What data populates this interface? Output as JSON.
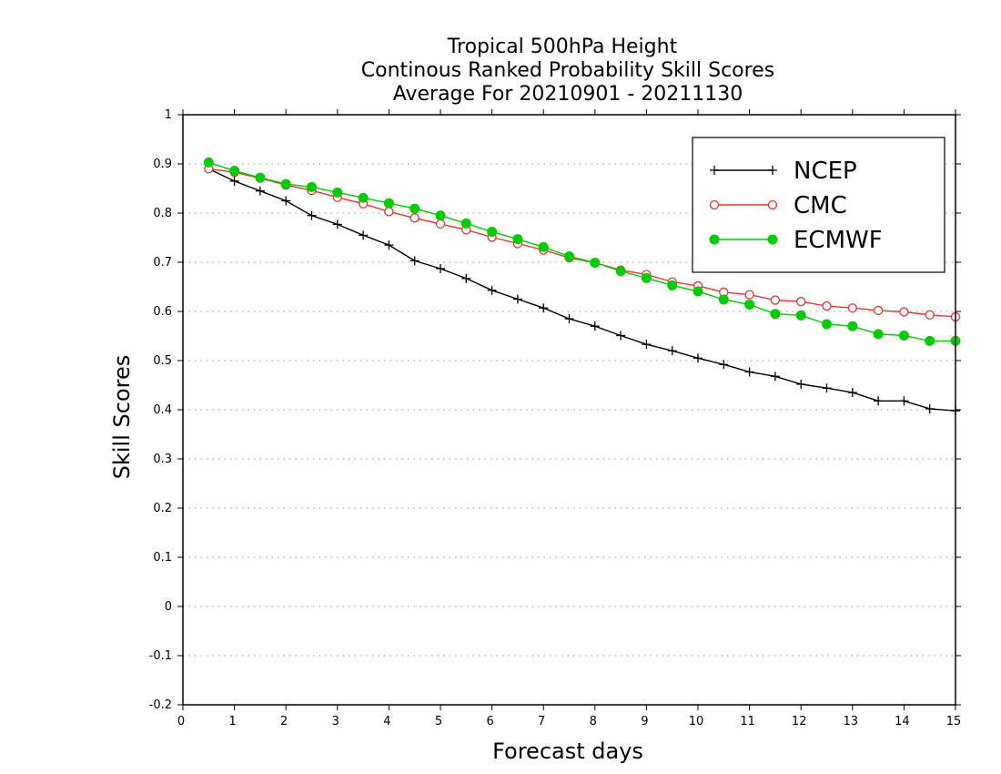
{
  "chart_data": {
    "type": "line",
    "title_lines": [
      "Tropical 500hPa Height",
      "Continous Ranked Probability Skill Scores",
      "Average For 20210901 - 20211130"
    ],
    "xlabel": "Forecast days",
    "ylabel": "Skill Scores",
    "xlim": [
      0,
      15
    ],
    "ylim": [
      -0.2,
      1
    ],
    "x_ticks": [
      0,
      1,
      2,
      3,
      4,
      5,
      6,
      7,
      8,
      9,
      10,
      11,
      12,
      13,
      14,
      15
    ],
    "x_tick_labels": [
      "0",
      "1",
      "2",
      "3",
      "4",
      "5",
      "6",
      "7",
      "8",
      "9",
      "10",
      "11",
      "12",
      "13",
      "14",
      "15"
    ],
    "y_ticks": [
      -0.2,
      -0.1,
      0,
      0.1,
      0.2,
      0.3,
      0.4,
      0.5,
      0.6,
      0.7,
      0.8,
      0.9,
      1
    ],
    "y_tick_labels": [
      "-0.2",
      "-0.1",
      "0",
      "0.1",
      "0.2",
      "0.3",
      "0.4",
      "0.5",
      "0.6",
      "0.7",
      "0.8",
      "0.9",
      "1"
    ],
    "grid": true,
    "legend_position": "top-right",
    "x": [
      0.5,
      1,
      1.5,
      2,
      2.5,
      3,
      3.5,
      4,
      4.5,
      5,
      5.5,
      6,
      6.5,
      7,
      7.5,
      8,
      8.5,
      9,
      9.5,
      10,
      10.5,
      11,
      11.5,
      12,
      12.5,
      13,
      13.5,
      14,
      14.5,
      15
    ],
    "series": [
      {
        "name": "NCEP",
        "color": "#000000",
        "marker": "plus",
        "values": [
          0.89,
          0.865,
          0.845,
          0.825,
          0.795,
          0.777,
          0.755,
          0.735,
          0.703,
          0.687,
          0.667,
          0.643,
          0.625,
          0.607,
          0.585,
          0.57,
          0.551,
          0.533,
          0.52,
          0.505,
          0.492,
          0.477,
          0.468,
          0.452,
          0.444,
          0.435,
          0.418,
          0.418,
          0.402,
          0.398
        ]
      },
      {
        "name": "CMC",
        "color": "#ee3333",
        "marker": "open-circle",
        "values": [
          0.89,
          0.883,
          0.871,
          0.857,
          0.846,
          0.832,
          0.819,
          0.803,
          0.79,
          0.778,
          0.766,
          0.751,
          0.738,
          0.725,
          0.709,
          0.699,
          0.684,
          0.675,
          0.66,
          0.652,
          0.639,
          0.634,
          0.623,
          0.62,
          0.611,
          0.607,
          0.602,
          0.599,
          0.593,
          0.589
        ]
      },
      {
        "name": "ECMWF",
        "color": "#00cc00",
        "marker": "filled-circle",
        "values": [
          0.903,
          0.886,
          0.872,
          0.859,
          0.853,
          0.842,
          0.831,
          0.82,
          0.809,
          0.795,
          0.779,
          0.762,
          0.747,
          0.731,
          0.712,
          0.699,
          0.682,
          0.668,
          0.653,
          0.641,
          0.624,
          0.614,
          0.595,
          0.592,
          0.574,
          0.57,
          0.554,
          0.551,
          0.54,
          0.54
        ]
      }
    ]
  }
}
